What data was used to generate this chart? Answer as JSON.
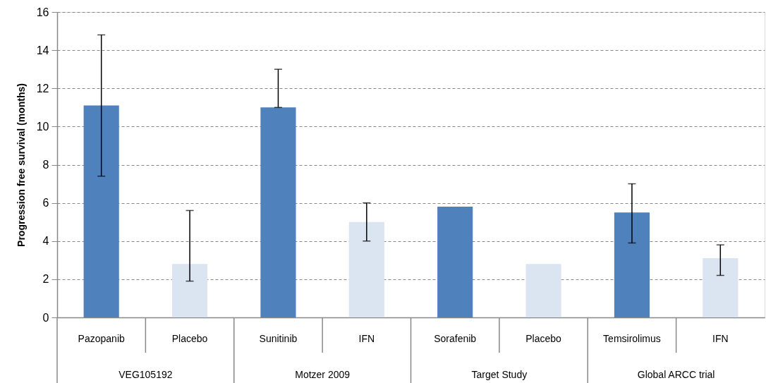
{
  "chart_data": {
    "type": "bar",
    "ylabel": "Progression free survival (months)",
    "categories": [
      "Pazopanib",
      "Placebo",
      "Sunitinib",
      "IFN",
      "Sorafenib",
      "Placebo",
      "Temsirolimus",
      "IFN"
    ],
    "values": [
      11.1,
      2.8,
      11.0,
      5.0,
      5.8,
      2.8,
      5.5,
      3.1
    ],
    "colors": [
      "#4f81bd",
      "#dbe5f1",
      "#4f81bd",
      "#dbe5f1",
      "#4f81bd",
      "#dbe5f1",
      "#4f81bd",
      "#dbe5f1"
    ],
    "errors": [
      [
        7.4,
        14.8
      ],
      [
        1.9,
        5.6
      ],
      [
        11.0,
        13.0
      ],
      [
        4.0,
        6.0
      ],
      null,
      null,
      [
        3.9,
        7.0
      ],
      [
        2.2,
        3.8
      ]
    ],
    "annotations": [
      "VEG105192",
      "Motzer 2009",
      "Target Study",
      "Global ARCC trial"
    ],
    "ylim": [
      0,
      16
    ],
    "yticks": [
      0,
      2,
      4,
      6,
      8,
      10,
      12,
      14,
      16
    ],
    "grid": "y"
  }
}
